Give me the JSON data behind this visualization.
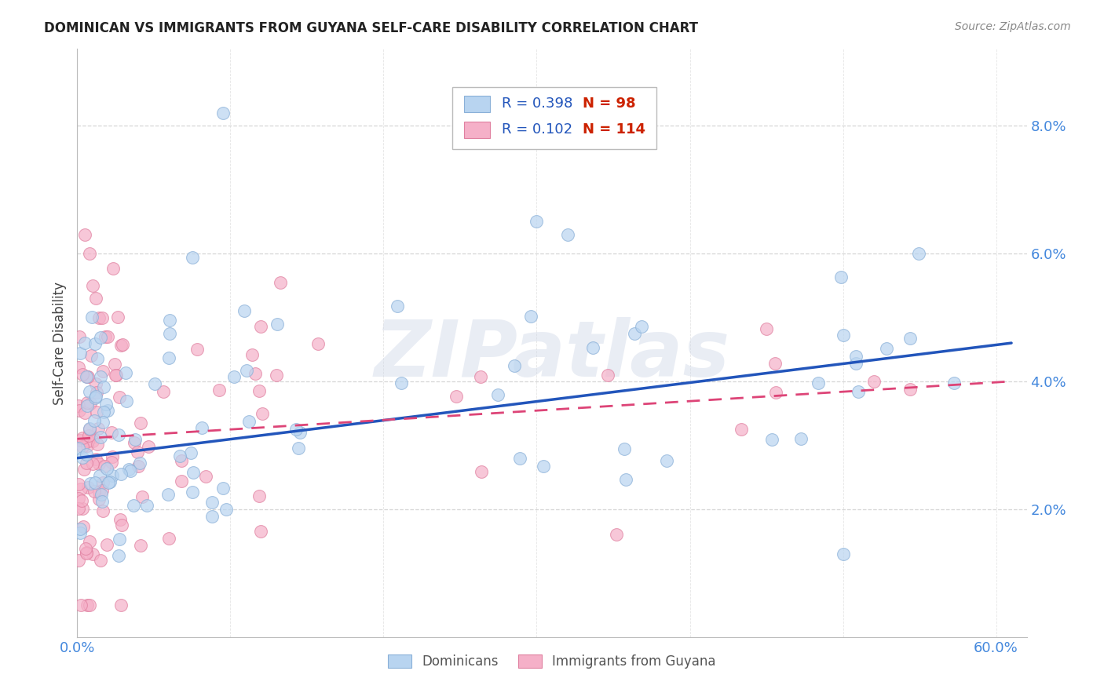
{
  "title": "DOMINICAN VS IMMIGRANTS FROM GUYANA SELF-CARE DISABILITY CORRELATION CHART",
  "source": "Source: ZipAtlas.com",
  "ylabel": "Self-Care Disability",
  "xlim": [
    0.0,
    0.62
  ],
  "ylim": [
    0.0,
    0.092
  ],
  "yticks": [
    0.0,
    0.02,
    0.04,
    0.06,
    0.08
  ],
  "ytick_labels": [
    "",
    "2.0%",
    "4.0%",
    "6.0%",
    "8.0%"
  ],
  "xticks": [
    0.0,
    0.1,
    0.2,
    0.3,
    0.4,
    0.5,
    0.6
  ],
  "xtick_labels": [
    "0.0%",
    "",
    "",
    "",
    "",
    "",
    "60.0%"
  ],
  "dominican_color": "#b8d4f0",
  "guyana_color": "#f5b0c8",
  "dominican_edge": "#8ab0d8",
  "guyana_edge": "#e080a0",
  "dominican_line_color": "#2255bb",
  "guyana_line_color": "#dd4477",
  "legend_r1": "R = 0.398",
  "legend_n1": "N = 98",
  "legend_r2": "R = 0.102",
  "legend_n2": "N = 114",
  "watermark": "ZIPatlas",
  "background_color": "#ffffff",
  "grid_color": "#cccccc",
  "dom_line_start_y": 0.028,
  "dom_line_end_y": 0.046,
  "guy_line_start_y": 0.031,
  "guy_line_end_y": 0.04
}
